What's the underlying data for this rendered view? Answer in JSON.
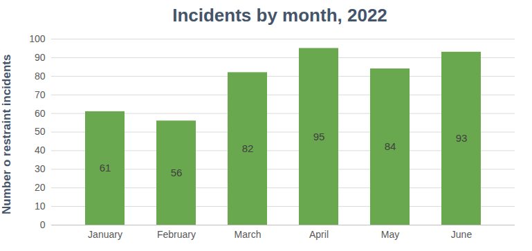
{
  "chart_data": {
    "type": "bar",
    "title": "Incidents by month, 2022",
    "y_label": "Number o restraint incidents",
    "categories": [
      "January",
      "February",
      "March",
      "April",
      "May",
      "June"
    ],
    "values": [
      61,
      56,
      82,
      95,
      84,
      93
    ],
    "color": "#6aa84f",
    "ylim": [
      0,
      100
    ],
    "yticks": [
      0,
      10,
      20,
      30,
      40,
      50,
      60,
      70,
      80,
      90,
      100
    ],
    "grid": true,
    "data_labels": true
  }
}
